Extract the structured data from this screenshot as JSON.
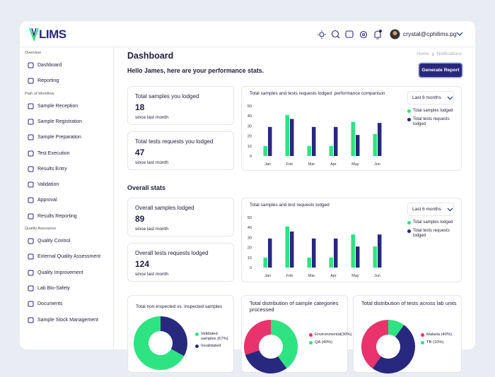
{
  "header": {
    "logo": "LIMS",
    "user": "crystal@cphilims.pg"
  },
  "sidebar": [
    {
      "label": "Overview",
      "items": [
        "Dashboard",
        "Reporting"
      ]
    },
    {
      "label": "Path of Workflow",
      "items": [
        "Sample Reception",
        "Sample Registration",
        "Sample Preparation",
        "Test Execution",
        "Results Entry",
        "Validation",
        "Approval",
        "Results Reporting"
      ]
    },
    {
      "label": "Quality Assurance",
      "items": [
        "Quality Control",
        "External Quality Assessment",
        "Quality Improvement",
        "Lab Bio-Safety",
        "Documents",
        "Sample Stock Management"
      ]
    }
  ],
  "page": {
    "title": "Dashboard",
    "breadcrumb": [
      "Home",
      "Notifications"
    ],
    "greeting": "Hello James, here are your performance stats.",
    "button": "Generate Report",
    "section": "Overall stats"
  },
  "stats": [
    {
      "label": "Total samples you lodged",
      "value": 18,
      "note": "since last month"
    },
    {
      "label": "Total tests requests you lodged",
      "value": 47,
      "note": "since last month"
    },
    {
      "label": "Overall samples lodged",
      "value": 89,
      "note": "since last month"
    },
    {
      "label": "Overall tests requests lodged",
      "value": 124,
      "note": "since last month"
    }
  ],
  "chart_data": [
    {
      "type": "bar",
      "title": "Total samples and tests requests lodged: performance comparison",
      "filter": "Last 6 months",
      "categories": [
        "Jan",
        "Feb",
        "Mar",
        "Apr",
        "May",
        "Jun"
      ],
      "series": [
        {
          "name": "Total samples lodged",
          "color": "#2ee381",
          "values": [
            10,
            41,
            10,
            10,
            34,
            22
          ]
        },
        {
          "name": "Total tests requests lodged",
          "color": "#28287e",
          "values": [
            29,
            37,
            29,
            29,
            21,
            33
          ]
        }
      ],
      "ylim": [
        0,
        50
      ],
      "yticks": [
        0,
        10,
        20,
        30,
        40,
        50
      ],
      "legend": "right"
    },
    {
      "type": "bar",
      "title": "Total samples and test requests lodged",
      "filter": "Last 6 months",
      "categories": [
        "Jan",
        "Feb",
        "Mar",
        "Apr",
        "May",
        "Jun"
      ],
      "series": [
        {
          "name": "Total samples lodged",
          "color": "#2ee381",
          "values": [
            10,
            41,
            10,
            10,
            33,
            21
          ]
        },
        {
          "name": "Total tests requests lodged",
          "color": "#28287e",
          "values": [
            29,
            36,
            29,
            29,
            21,
            33
          ]
        }
      ],
      "ylim": [
        0,
        50
      ],
      "yticks": [
        0,
        10,
        20,
        30,
        40,
        50
      ],
      "legend": "right"
    },
    {
      "type": "pie",
      "donut": true,
      "title": "Total non-inspected vs. inspected samples",
      "categories": [
        "Validated samples (67%)",
        "Invalidated"
      ],
      "values": [
        67,
        33
      ],
      "colors": [
        "#2ee381",
        "#28287e"
      ]
    },
    {
      "type": "pie",
      "donut": true,
      "title": "Total distribution of sample categories processed",
      "categories": [
        "Environmental(30%)",
        "QA (40%)",
        null
      ],
      "values": [
        30,
        40,
        30
      ],
      "colors": [
        "#e8336d",
        "#2ee381",
        "#28287e"
      ]
    },
    {
      "type": "pie",
      "donut": true,
      "title": "Total distribution of tests across lab units",
      "categories": [
        "Malaria (40%)",
        "TB (10%)",
        null
      ],
      "values": [
        40,
        10,
        50
      ],
      "colors": [
        "#e8336d",
        "#2ee381",
        "#28287e"
      ]
    }
  ]
}
